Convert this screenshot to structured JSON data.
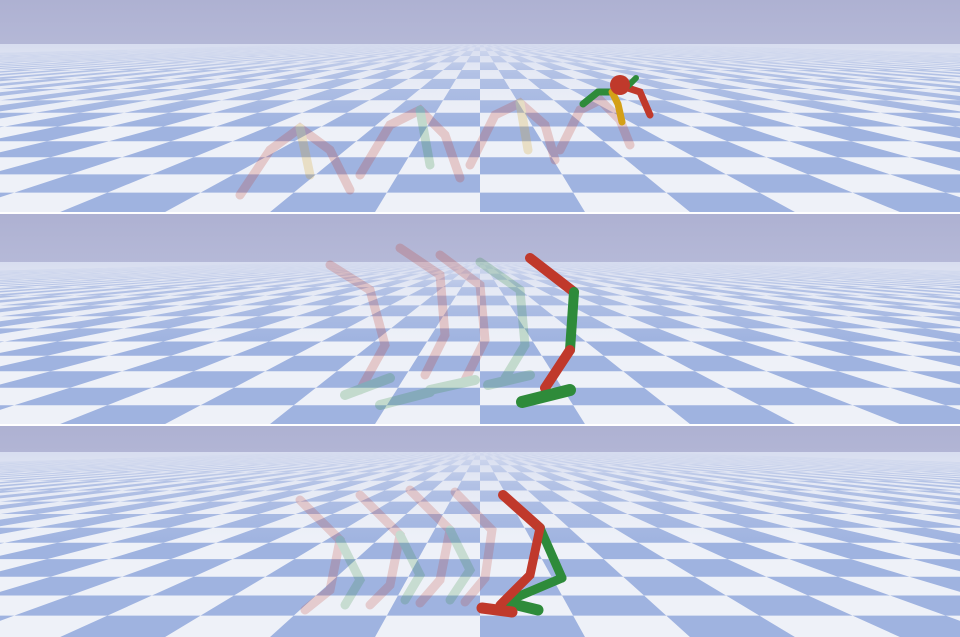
{
  "scene": {
    "panels": [
      {
        "name": "ant-panel",
        "robot": "ant-robot"
      },
      {
        "name": "hopper-panel",
        "robot": "hopper-robot"
      },
      {
        "name": "walker-panel",
        "robot": "walker-robot"
      }
    ],
    "colors": {
      "sky_top": "#b2b4d4",
      "sky_bottom": "#cfd5ea",
      "tile_light": "#eef1f8",
      "tile_dark": "#9fb3e0",
      "limb_red": "#c0392b",
      "limb_green": "#2e8b3a",
      "limb_yellow": "#d4a017",
      "ghost_opacity": 0.25
    },
    "icons": [
      "checkerboard-floor",
      "motion-trail-ghosts"
    ]
  }
}
